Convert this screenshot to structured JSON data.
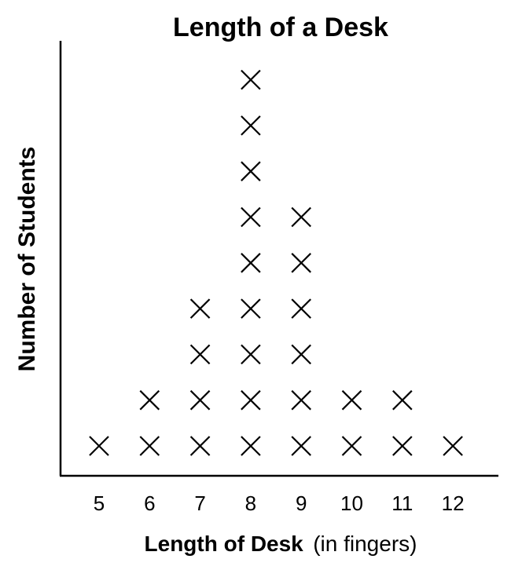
{
  "chart_data": {
    "type": "dot_plot",
    "title": "Length of a Desk",
    "xlabel": "Length of Desk",
    "xlabel_unit": "(in fingers)",
    "ylabel": "Number of Students",
    "marker": "X",
    "categories": [
      "5",
      "6",
      "7",
      "8",
      "9",
      "10",
      "11",
      "12"
    ],
    "values": [
      1,
      2,
      4,
      9,
      6,
      2,
      2,
      1
    ],
    "grid": false
  }
}
